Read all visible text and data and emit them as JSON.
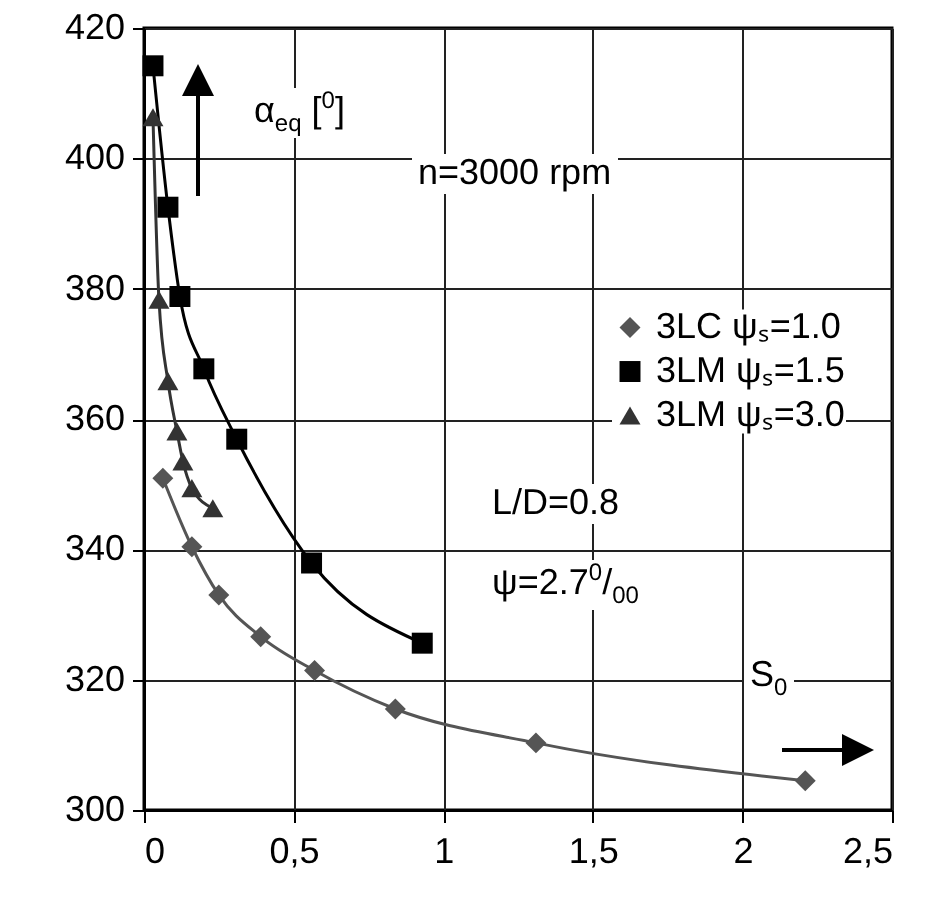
{
  "chart_data": {
    "type": "line",
    "xlabel": "S$_{0}$",
    "ylabel": "α$_{eq}$ [$^{0}$]",
    "annotations": [
      "n=3000 rpm",
      "L/D=0.8",
      "ψ=2.7$^{0}$/$_{00}$"
    ],
    "series": [
      {
        "name": "3LC ψₛ=1.0",
        "color": "#555555",
        "marker": "diamond",
        "x": [
          0.063,
          0.16,
          0.25,
          0.39,
          0.57,
          0.84,
          1.31,
          2.21
        ],
        "values": [
          350.9,
          340.4,
          333.0,
          326.6,
          321.4,
          315.5,
          310.3,
          304.5
        ]
      },
      {
        "name": "3LM ψₛ=1.5",
        "color": "#000000",
        "marker": "square",
        "x": [
          0.03,
          0.08,
          0.12,
          0.2,
          0.31,
          0.56,
          0.93
        ],
        "values": [
          414.2,
          392.5,
          378.8,
          367.7,
          356.9,
          337.9,
          325.6
        ]
      },
      {
        "name": "3LM ψₛ=3.0",
        "color": "#333333",
        "marker": "triangle",
        "x": [
          0.03,
          0.05,
          0.08,
          0.11,
          0.13,
          0.16,
          0.23
        ],
        "values": [
          406.3,
          378.3,
          365.8,
          358.1,
          353.5,
          349.4,
          346.3
        ]
      }
    ],
    "xlim": [
      0,
      2.5
    ],
    "xticks": [
      0,
      {
        "value": 0.5,
        "label": "0,5"
      },
      1,
      {
        "value": 1.5,
        "label": "1,5"
      },
      2,
      {
        "value": 2.5,
        "label": "2,5"
      }
    ],
    "ylim": [
      300,
      420
    ],
    "yticks": [
      300,
      320,
      340,
      360,
      380,
      400,
      420
    ],
    "grid": true,
    "legend": "right"
  }
}
